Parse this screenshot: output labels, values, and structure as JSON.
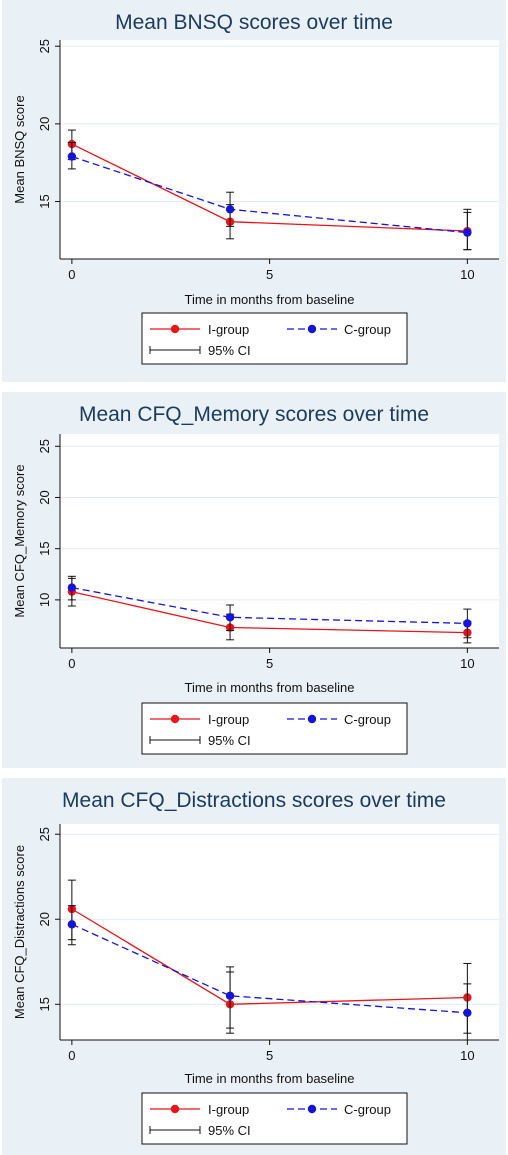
{
  "chart_data": [
    {
      "type": "line",
      "title": "Mean BNSQ scores over time",
      "xlabel": "Time in months from baseline",
      "ylabel": "Mean BNSQ score",
      "x": [
        0,
        4,
        10
      ],
      "xticks": [
        "0",
        "5",
        "10"
      ],
      "yticks": [
        "15",
        "20",
        "25"
      ],
      "xlim": [
        -0.3,
        10.8
      ],
      "ylim": [
        11.3,
        25.4
      ],
      "series": [
        {
          "name": "I-group",
          "color": "#e8141b",
          "dash": "solid",
          "values": [
            18.7,
            13.7,
            13.1
          ],
          "ci_low": [
            17.7,
            12.6,
            11.9
          ],
          "ci_high": [
            19.6,
            14.8,
            14.3
          ]
        },
        {
          "name": "C-group",
          "color": "#1414d6",
          "dash": "dashed",
          "values": [
            17.9,
            14.5,
            13.0
          ],
          "ci_low": [
            17.1,
            13.4,
            11.9
          ],
          "ci_high": [
            18.8,
            15.6,
            14.5
          ]
        }
      ],
      "legend": {
        "ci_label": "95% CI",
        "position": "bottom"
      }
    },
    {
      "type": "line",
      "title": "Mean CFQ_Memory scores over time",
      "xlabel": "Time in months from baseline",
      "ylabel": "Mean CFQ_Memory score",
      "x": [
        0,
        4,
        10
      ],
      "xticks": [
        "0",
        "5",
        "10"
      ],
      "yticks": [
        "10",
        "15",
        "20",
        "25"
      ],
      "xlim": [
        -0.3,
        10.8
      ],
      "ylim": [
        5.3,
        26.2
      ],
      "series": [
        {
          "name": "I-group",
          "color": "#e8141b",
          "dash": "solid",
          "values": [
            10.8,
            7.3,
            6.8
          ],
          "ci_low": [
            9.4,
            6.1,
            5.8
          ],
          "ci_high": [
            12.1,
            8.6,
            7.9
          ]
        },
        {
          "name": "C-group",
          "color": "#1414d6",
          "dash": "dashed",
          "values": [
            11.2,
            8.3,
            7.7
          ],
          "ci_low": [
            10.0,
            7.0,
            6.3
          ],
          "ci_high": [
            12.3,
            9.5,
            9.1
          ]
        }
      ],
      "legend": {
        "ci_label": "95% CI",
        "position": "bottom"
      }
    },
    {
      "type": "line",
      "title": "Mean CFQ_Distractions scores over time",
      "xlabel": "Time in months from baseline",
      "ylabel": "Mean CFQ_Distractions score",
      "x": [
        0,
        4,
        10
      ],
      "xticks": [
        "0",
        "5",
        "10"
      ],
      "yticks": [
        "15",
        "20",
        "25"
      ],
      "xlim": [
        -0.3,
        10.8
      ],
      "ylim": [
        12.9,
        25.6
      ],
      "series": [
        {
          "name": "I-group",
          "color": "#e8141b",
          "dash": "solid",
          "values": [
            20.6,
            15.0,
            15.4
          ],
          "ci_low": [
            18.8,
            13.6,
            13.3
          ],
          "ci_high": [
            22.3,
            16.9,
            17.4
          ]
        },
        {
          "name": "C-group",
          "color": "#1414d6",
          "dash": "dashed",
          "values": [
            19.7,
            15.5,
            14.5
          ],
          "ci_low": [
            18.5,
            13.3,
            12.9
          ],
          "ci_high": [
            20.8,
            17.2,
            16.2
          ]
        }
      ],
      "legend": {
        "ci_label": "95% CI",
        "position": "bottom"
      }
    }
  ]
}
